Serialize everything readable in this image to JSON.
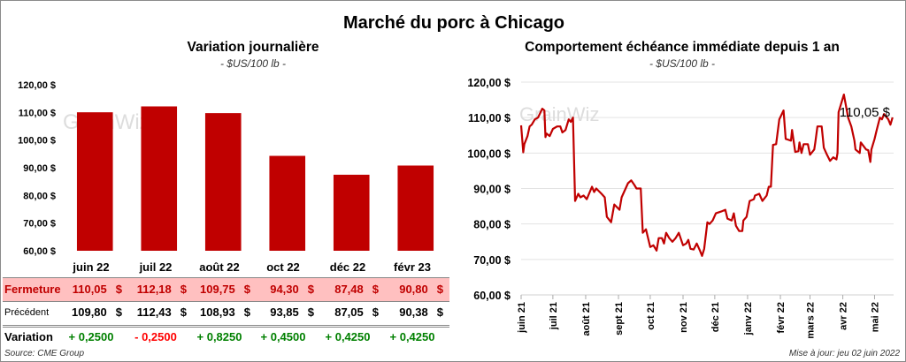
{
  "title": "Marché du porc à Chicago",
  "watermark": "GrainWiz",
  "source": "Source: CME Group",
  "updated": "Mise à jour: jeu 02 juin 2022",
  "colors": {
    "bar": "#c00000",
    "line": "#c00000",
    "highlight_row": "#ffc0c0",
    "up": "#008000",
    "down": "#ff0000"
  },
  "table": {
    "row_labels": {
      "close": "Fermeture",
      "previous": "Précédent",
      "change": "Variation"
    },
    "currency": "$",
    "months": [
      "juin 22",
      "juil 22",
      "août 22",
      "oct 22",
      "déc 22",
      "févr 23"
    ],
    "close": [
      "110,05",
      "112,18",
      "109,75",
      "94,30",
      "87,48",
      "90,80"
    ],
    "previous": [
      "109,80",
      "112,43",
      "108,93",
      "93,85",
      "87,05",
      "90,38"
    ],
    "change": [
      "+ 0,2500",
      "- 0,2500",
      "+ 0,8250",
      "+ 0,4500",
      "+ 0,4250",
      "+ 0,4250"
    ]
  },
  "chart_data": [
    {
      "type": "bar",
      "title": "Variation journalière",
      "subtitle": "- $US/100 lb -",
      "categories": [
        "juin 22",
        "juil 22",
        "août 22",
        "oct 22",
        "déc 22",
        "févr 23"
      ],
      "values": [
        110.05,
        112.18,
        109.75,
        94.3,
        87.48,
        90.8
      ],
      "ylim": [
        60,
        120
      ],
      "yticks": [
        "60,00 $",
        "70,00 $",
        "80,00 $",
        "90,00 $",
        "100,00 $",
        "110,00 $",
        "120,00 $"
      ],
      "grid": false
    },
    {
      "type": "line",
      "title": "Comportement  échéance immédiate depuis 1 an",
      "subtitle": "- $US/100 lb -",
      "ylim": [
        60,
        120
      ],
      "yticks": [
        "60,00 $",
        "70,00 $",
        "80,00 $",
        "90,00 $",
        "100,00 $",
        "110,00 $",
        "120,00 $"
      ],
      "xlim": [
        "2021-06-01",
        "2022-05-19"
      ],
      "xticks": [
        {
          "date": "2021-06-01",
          "label": "juin 21"
        },
        {
          "date": "2021-07-01",
          "label": "juil 21"
        },
        {
          "date": "2021-08-01",
          "label": "août 21"
        },
        {
          "date": "2021-09-01",
          "label": "sept 21"
        },
        {
          "date": "2021-10-01",
          "label": "oct 21"
        },
        {
          "date": "2021-11-01",
          "label": "nov 21"
        },
        {
          "date": "2021-12-01",
          "label": "déc 21"
        },
        {
          "date": "2022-01-01",
          "label": "janv 22"
        },
        {
          "date": "2022-02-01",
          "label": "févr 22"
        },
        {
          "date": "2022-03-01",
          "label": "mars 22"
        },
        {
          "date": "2022-04-01",
          "label": "avr 22"
        },
        {
          "date": "2022-05-01",
          "label": "mai 22"
        }
      ],
      "grid": true,
      "last_label": "110,05 $",
      "points": [
        [
          "2021-06-01",
          107.8
        ],
        [
          "2021-06-03",
          100.2
        ],
        [
          "2021-06-04",
          102.5
        ],
        [
          "2021-06-07",
          104.8
        ],
        [
          "2021-06-09",
          107.5
        ],
        [
          "2021-06-11",
          108.0
        ],
        [
          "2021-06-14",
          109.5
        ],
        [
          "2021-06-17",
          110.0
        ],
        [
          "2021-06-21",
          112.5
        ],
        [
          "2021-06-23",
          112.0
        ],
        [
          "2021-06-24",
          104.5
        ],
        [
          "2021-06-25",
          105.5
        ],
        [
          "2021-06-28",
          104.8
        ],
        [
          "2021-07-01",
          106.8
        ],
        [
          "2021-07-05",
          107.5
        ],
        [
          "2021-07-08",
          107.5
        ],
        [
          "2021-07-10",
          105.8
        ],
        [
          "2021-07-13",
          106.5
        ],
        [
          "2021-07-16",
          109.5
        ],
        [
          "2021-07-18",
          108.8
        ],
        [
          "2021-07-20",
          110.0
        ],
        [
          "2021-07-22",
          86.5
        ],
        [
          "2021-07-25",
          88.5
        ],
        [
          "2021-07-27",
          87.5
        ],
        [
          "2021-07-30",
          88.0
        ],
        [
          "2021-08-02",
          87.0
        ],
        [
          "2021-08-07",
          90.5
        ],
        [
          "2021-08-09",
          89.0
        ],
        [
          "2021-08-11",
          90.0
        ],
        [
          "2021-08-16",
          88.5
        ],
        [
          "2021-08-19",
          87.5
        ],
        [
          "2021-08-21",
          82.0
        ],
        [
          "2021-08-25",
          80.5
        ],
        [
          "2021-08-28",
          85.5
        ],
        [
          "2021-09-02",
          84.0
        ],
        [
          "2021-09-04",
          87.5
        ],
        [
          "2021-09-10",
          91.5
        ],
        [
          "2021-09-13",
          92.3
        ],
        [
          "2021-09-16",
          91.0
        ],
        [
          "2021-09-18",
          90.0
        ],
        [
          "2021-09-22",
          90.0
        ],
        [
          "2021-09-24",
          77.5
        ],
        [
          "2021-09-27",
          78.5
        ],
        [
          "2021-10-01",
          73.5
        ],
        [
          "2021-10-04",
          74.0
        ],
        [
          "2021-10-07",
          72.5
        ],
        [
          "2021-10-09",
          76.0
        ],
        [
          "2021-10-12",
          76.0
        ],
        [
          "2021-10-14",
          74.5
        ],
        [
          "2021-10-16",
          77.5
        ],
        [
          "2021-10-19",
          76.0
        ],
        [
          "2021-10-22",
          75.0
        ],
        [
          "2021-10-25",
          76.0
        ],
        [
          "2021-10-28",
          77.5
        ],
        [
          "2021-11-01",
          74.0
        ],
        [
          "2021-11-04",
          74.5
        ],
        [
          "2021-11-06",
          75.5
        ],
        [
          "2021-11-08",
          73.0
        ],
        [
          "2021-11-11",
          72.8
        ],
        [
          "2021-11-14",
          74.5
        ],
        [
          "2021-11-17",
          72.5
        ],
        [
          "2021-11-19",
          71.0
        ],
        [
          "2021-11-21",
          73.0
        ],
        [
          "2021-11-24",
          80.5
        ],
        [
          "2021-11-26",
          80.0
        ],
        [
          "2021-11-29",
          81.0
        ],
        [
          "2021-12-02",
          83.0
        ],
        [
          "2021-12-07",
          83.5
        ],
        [
          "2021-12-11",
          84.0
        ],
        [
          "2021-12-13",
          81.5
        ],
        [
          "2021-12-17",
          81.0
        ],
        [
          "2021-12-19",
          83.0
        ],
        [
          "2021-12-21",
          79.5
        ],
        [
          "2021-12-24",
          78.0
        ],
        [
          "2021-12-27",
          78.0
        ],
        [
          "2021-12-28",
          81.0
        ],
        [
          "2021-12-31",
          82.0
        ],
        [
          "2022-01-03",
          86.5
        ],
        [
          "2022-01-07",
          87.0
        ],
        [
          "2022-01-08",
          88.0
        ],
        [
          "2022-01-12",
          88.5
        ],
        [
          "2022-01-15",
          86.5
        ],
        [
          "2022-01-19",
          88.0
        ],
        [
          "2022-01-21",
          90.5
        ],
        [
          "2022-01-23",
          90.5
        ],
        [
          "2022-01-25",
          102.3
        ],
        [
          "2022-01-28",
          102.5
        ],
        [
          "2022-01-31",
          109.5
        ],
        [
          "2022-02-04",
          112.0
        ],
        [
          "2022-02-06",
          104.0
        ],
        [
          "2022-02-11",
          103.5
        ],
        [
          "2022-02-12",
          106.5
        ],
        [
          "2022-02-15",
          100.3
        ],
        [
          "2022-02-18",
          100.5
        ],
        [
          "2022-02-19",
          103.0
        ],
        [
          "2022-02-21",
          100.0
        ],
        [
          "2022-02-23",
          102.5
        ],
        [
          "2022-02-27",
          102.5
        ],
        [
          "2022-03-01",
          99.5
        ],
        [
          "2022-03-05",
          101.0
        ],
        [
          "2022-03-06",
          103.0
        ],
        [
          "2022-03-08",
          107.5
        ],
        [
          "2022-03-12",
          107.5
        ],
        [
          "2022-03-14",
          101.5
        ],
        [
          "2022-03-17",
          99.5
        ],
        [
          "2022-03-20",
          97.8
        ],
        [
          "2022-03-23",
          98.8
        ],
        [
          "2022-03-26",
          98.2
        ],
        [
          "2022-03-27",
          100.0
        ],
        [
          "2022-03-28",
          111.5
        ],
        [
          "2022-04-02",
          116.5
        ],
        [
          "2022-04-06",
          110.0
        ],
        [
          "2022-04-09",
          107.5
        ],
        [
          "2022-04-12",
          103.5
        ],
        [
          "2022-04-13",
          101.0
        ],
        [
          "2022-04-17",
          100.0
        ],
        [
          "2022-04-18",
          103.0
        ],
        [
          "2022-04-23",
          101.0
        ],
        [
          "2022-04-25",
          100.8
        ],
        [
          "2022-04-27",
          97.5
        ],
        [
          "2022-04-28",
          101.0
        ],
        [
          "2022-05-01",
          104.0
        ],
        [
          "2022-05-03",
          106.5
        ],
        [
          "2022-05-06",
          110.0
        ],
        [
          "2022-05-08",
          109.5
        ],
        [
          "2022-05-10",
          111.0
        ],
        [
          "2022-05-14",
          109.5
        ],
        [
          "2022-05-16",
          108.0
        ],
        [
          "2022-05-18",
          110.05
        ]
      ]
    }
  ]
}
